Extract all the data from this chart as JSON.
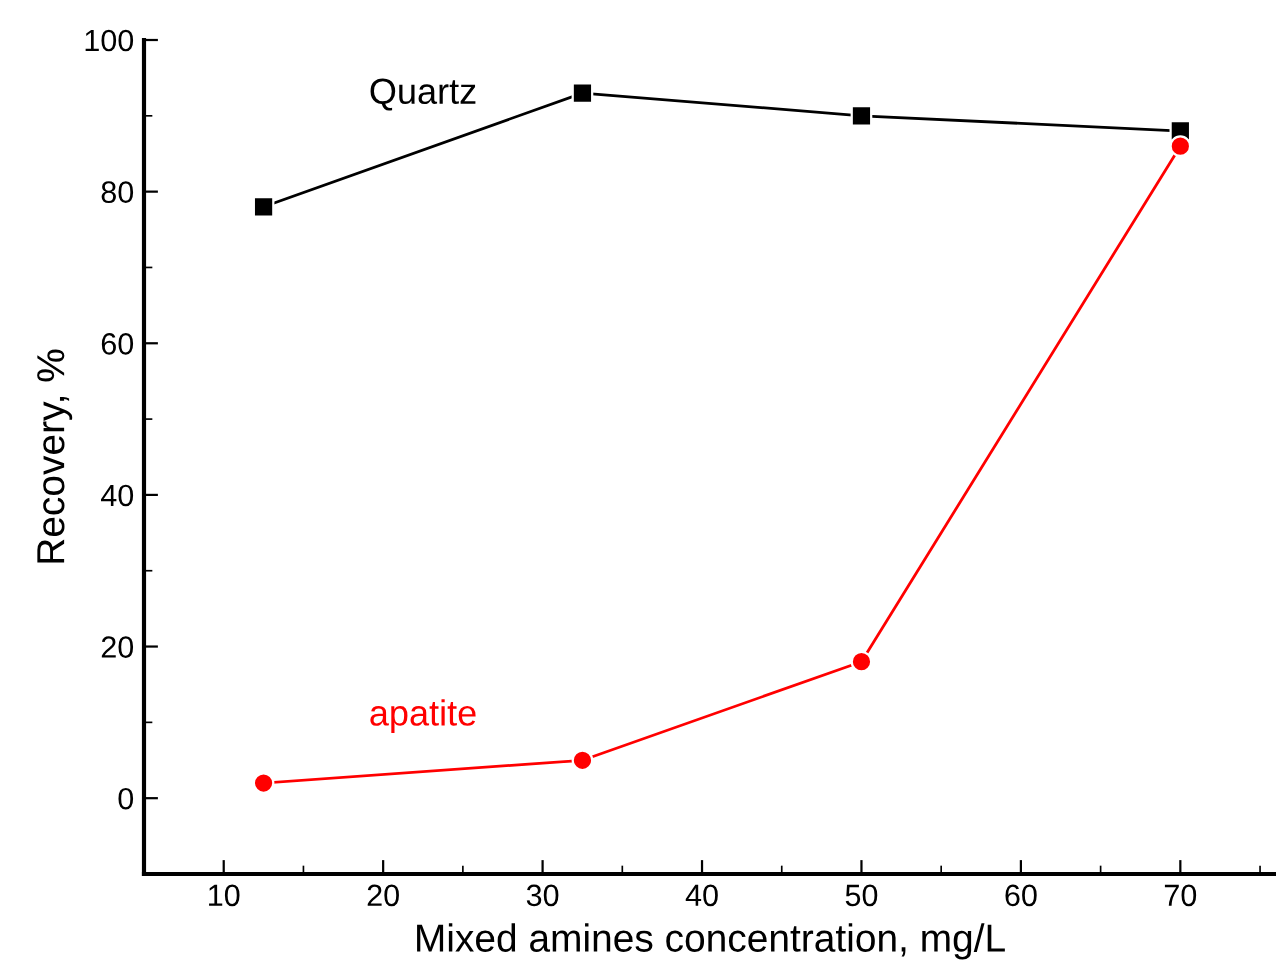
{
  "chart_data": {
    "type": "line",
    "xlabel": "Mixed amines concentration, mg/L",
    "ylabel": "Recovery, %",
    "x": [
      12.5,
      32.5,
      50,
      70
    ],
    "series": [
      {
        "name": "Quartz",
        "color": "#000000",
        "marker": "square",
        "values": [
          78,
          93,
          90,
          88
        ]
      },
      {
        "name": "apatite",
        "color": "#ff0000",
        "marker": "circle",
        "values": [
          2,
          5,
          18,
          86
        ]
      }
    ],
    "xlim": [
      5,
      76
    ],
    "xticks": [
      10,
      20,
      30,
      40,
      50,
      60,
      70
    ],
    "ylim": [
      -10,
      100
    ],
    "yticks": [
      0,
      20,
      40,
      60,
      80,
      100
    ],
    "grid": false,
    "legend": false,
    "line_style": "solid"
  }
}
